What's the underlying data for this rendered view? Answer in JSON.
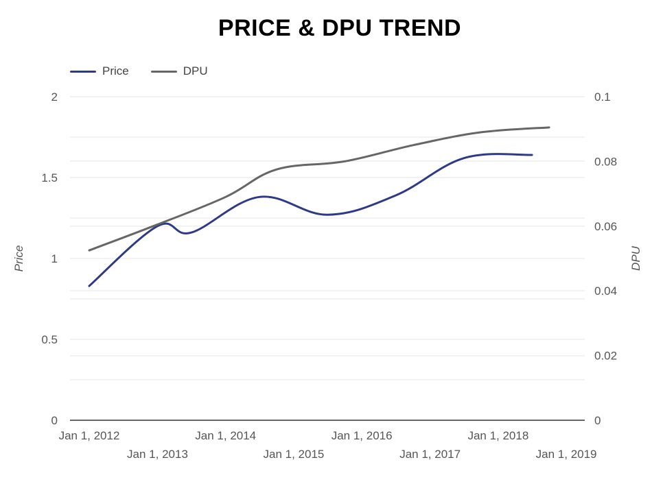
{
  "chart_data": {
    "type": "line",
    "title": "PRICE & DPU TREND",
    "x": [
      "2012-01-01",
      "2013-01-01",
      "2014-01-01",
      "2015-01-01",
      "2016-01-01",
      "2017-01-01",
      "2018-01-01",
      "2019-01-01"
    ],
    "x_tick_labels": [
      "Jan 1, 2012",
      "Jan 1, 2013",
      "Jan 1, 2014",
      "Jan 1, 2015",
      "Jan 1, 2016",
      "Jan 1, 2017",
      "Jan 1, 2018",
      "Jan 1, 2019"
    ],
    "x_labels_after": {
      "2012-01-01": 0.83,
      "2013-01-01": 1.2,
      "2014-01-01": 1.16,
      "2015-01-01": 1.38,
      "2016-01-01": 1.27,
      "2017-01-01": 1.39,
      "2018-01-01": 1.62,
      "2019-01-01": 1.64
    },
    "series": [
      {
        "name": "Price",
        "axis": "left",
        "color": "#2e3a87",
        "points": [
          {
            "x": "2012-01-01",
            "y": 0.83
          },
          {
            "x": "2013-01-01",
            "y": 1.2
          },
          {
            "x": "2013-07-01",
            "y": 1.16
          },
          {
            "x": "2014-07-01",
            "y": 1.38
          },
          {
            "x": "2015-07-01",
            "y": 1.27
          },
          {
            "x": "2016-07-01",
            "y": 1.39
          },
          {
            "x": "2017-07-01",
            "y": 1.62
          },
          {
            "x": "2018-07-01",
            "y": 1.64
          }
        ]
      },
      {
        "name": "DPU",
        "axis": "right",
        "color": "#666666",
        "points": [
          {
            "x": "2012-01-01",
            "y": 0.0525
          },
          {
            "x": "2013-01-01",
            "y": 0.0605
          },
          {
            "x": "2014-01-01",
            "y": 0.069
          },
          {
            "x": "2014-10-01",
            "y": 0.0775
          },
          {
            "x": "2015-10-01",
            "y": 0.08
          },
          {
            "x": "2016-10-01",
            "y": 0.085
          },
          {
            "x": "2017-10-01",
            "y": 0.089
          },
          {
            "x": "2018-10-01",
            "y": 0.0905
          }
        ]
      }
    ],
    "y_left": {
      "label": "Price",
      "ticks": [
        "0",
        "0.5",
        "1",
        "1.5",
        "2"
      ],
      "ylim": [
        0,
        2
      ]
    },
    "y_right": {
      "label": "DPU",
      "ticks": [
        "0",
        "0.02",
        "0.04",
        "0.06",
        "0.08",
        "0.1"
      ],
      "ylim": [
        0,
        0.1
      ]
    },
    "xlim": [
      "2011-09-20",
      "2019-04-10"
    ],
    "legend_position": "top-left",
    "grid": true
  }
}
